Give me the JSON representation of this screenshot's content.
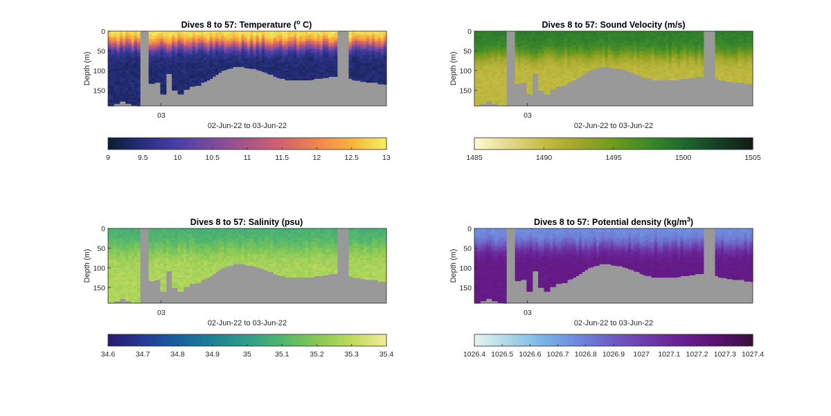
{
  "figure": {
    "background": "#ffffff",
    "mask_color": "#999999"
  },
  "chart_data": [
    {
      "type": "heatmap",
      "title": "Dives 8 to 57: Temperature (",
      "title_super": "o",
      "title_after": " C)",
      "xlabel": "02-Jun-22 to 03-Jun-22",
      "ylabel": "Depth (m)",
      "x_tick_labels": [
        "03"
      ],
      "y_ticks": [
        0,
        50,
        100,
        150
      ],
      "ylim": [
        0,
        190
      ],
      "y_reversed": true,
      "colorbar": {
        "min": 9,
        "max": 13,
        "ticks": [
          "9",
          "9.5",
          "10",
          "10.5",
          "11",
          "11.5",
          "12",
          "12.5",
          "13"
        ],
        "colors": [
          "#0b1c34",
          "#272f7e",
          "#4b3fa6",
          "#7a4b9c",
          "#a85586",
          "#d2636e",
          "#ef844f",
          "#f8b33c",
          "#f3ef63"
        ]
      },
      "profile": {
        "surface": 13,
        "bottom": 9.4,
        "transition": 35,
        "width": 40,
        "noise": 0.25
      }
    },
    {
      "type": "heatmap",
      "title": "Dives 8 to 57: Sound Velocity (m/s)",
      "title_super": "",
      "title_after": "",
      "xlabel": "02-Jun-22 to 03-Jun-22",
      "ylabel": "Depth (m)",
      "x_tick_labels": [
        "03"
      ],
      "y_ticks": [
        0,
        50,
        100,
        150
      ],
      "ylim": [
        0,
        190
      ],
      "y_reversed": true,
      "colorbar": {
        "min": 1485,
        "max": 1505,
        "ticks": [
          "1485",
          "1490",
          "1495",
          "1500",
          "1505"
        ],
        "colors": [
          "#fdfbd0",
          "#e2d98a",
          "#c6bc45",
          "#9fa62a",
          "#6f9a1f",
          "#3d8a2a",
          "#1d6a2f",
          "#153f26",
          "#101d14"
        ]
      },
      "profile": {
        "surface": 1498.5,
        "bottom": 1490.5,
        "transition": 60,
        "width": 45,
        "noise": 0.9
      }
    },
    {
      "type": "heatmap",
      "title": "Dives 8 to 57: Salinity (psu)",
      "title_super": "",
      "title_after": "",
      "xlabel": "02-Jun-22 to 03-Jun-22",
      "ylabel": "Depth (m)",
      "x_tick_labels": [
        "03"
      ],
      "y_ticks": [
        0,
        50,
        100,
        150
      ],
      "ylim": [
        0,
        190
      ],
      "y_reversed": true,
      "colorbar": {
        "min": 34.6,
        "max": 35.4,
        "ticks": [
          "34.6",
          "34.7",
          "34.8",
          "34.9",
          "35",
          "35.1",
          "35.2",
          "35.3",
          "35.4"
        ],
        "colors": [
          "#2a1a6b",
          "#243b93",
          "#19609c",
          "#1d8195",
          "#2f9e88",
          "#52b66d",
          "#86c856",
          "#bed95e",
          "#f4ec96"
        ]
      },
      "profile": {
        "surface": 35.07,
        "bottom": 35.27,
        "transition": 50,
        "width": 60,
        "noise": 0.05
      }
    },
    {
      "type": "heatmap",
      "title": "Dives 8 to 57: Potential density (kg/m",
      "title_super": "3",
      "title_after": ")",
      "xlabel": "02-Jun-22 to 03-Jun-22",
      "ylabel": "Depth (m)",
      "x_tick_labels": [
        "03"
      ],
      "y_ticks": [
        0,
        50,
        100,
        150
      ],
      "ylim": [
        0,
        190
      ],
      "y_reversed": true,
      "colorbar": {
        "min": 1026.4,
        "max": 1027.4,
        "ticks": [
          "1026.4",
          "1026.5",
          "1026.6",
          "1026.7",
          "1026.8",
          "1026.9",
          "1027",
          "1027.1",
          "1027.2",
          "1027.3",
          "1027.4"
        ],
        "colors": [
          "#e6f4f2",
          "#a9d7e7",
          "#7ab2e6",
          "#6e87da",
          "#6e5cc4",
          "#6e3aa8",
          "#671e8e",
          "#5a1270",
          "#3a0f3c"
        ]
      },
      "profile": {
        "surface": 1026.75,
        "bottom": 1027.18,
        "transition": 45,
        "width": 45,
        "noise": 0.04
      }
    }
  ],
  "section": {
    "n_columns": 96,
    "mask_columns": [
      [
        11,
        13
      ],
      [
        79,
        82
      ]
    ],
    "bottom_depth": [
      190,
      190,
      184,
      184,
      178,
      178,
      184,
      184,
      188,
      188,
      190,
      190,
      190,
      190,
      133,
      133,
      130,
      130,
      160,
      160,
      108,
      108,
      150,
      150,
      160,
      160,
      148,
      148,
      142,
      142,
      138,
      138,
      132,
      128,
      124,
      120,
      115,
      110,
      106,
      102,
      98,
      96,
      94,
      92,
      92,
      92,
      92,
      93,
      94,
      95,
      96,
      98,
      100,
      103,
      106,
      109,
      112,
      115,
      118,
      120,
      122,
      124,
      124,
      124,
      124,
      124,
      124,
      124,
      124,
      124,
      123,
      122,
      121,
      120,
      118,
      118,
      117,
      116,
      116,
      116,
      116,
      116,
      120,
      122,
      124,
      126,
      126,
      128,
      128,
      130,
      130,
      132,
      132,
      134,
      134,
      135
    ]
  }
}
